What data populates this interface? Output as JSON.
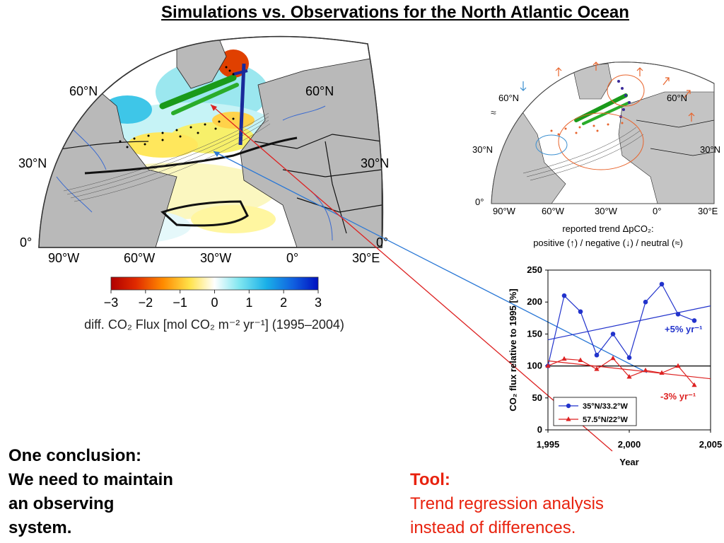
{
  "title": "Simulations vs. Observations for the North Atlantic Ocean",
  "main_map": {
    "lat_labels_left": [
      "60°N",
      "30°N",
      "0°"
    ],
    "lat_labels_right": [
      "60°N",
      "30°N",
      "0°"
    ],
    "lon_labels": [
      "90°W",
      "60°W",
      "30°W",
      "0°",
      "30°E"
    ],
    "colorbar": {
      "ticks": [
        "−3",
        "−2",
        "−1",
        "0",
        "1",
        "2",
        "3"
      ],
      "range": [
        -3,
        3
      ],
      "label": "diff. CO₂ Flux [mol CO₂ m⁻² yr⁻¹] (1995–2004)"
    }
  },
  "inset_map": {
    "lat_labels_left": [
      "60°N",
      "30°N",
      "0°"
    ],
    "lat_labels_right": [
      "60°N",
      "30°N"
    ],
    "lon_labels": [
      "90°W",
      "60°W",
      "30°W",
      "0°",
      "30°E"
    ],
    "caption_line1": "reported trend ΔpCO₂:",
    "caption_line2": "positive (↑) / negative (↓) / neutral (≈)",
    "colors": {
      "positive": "#e8642c",
      "negative": "#3a8fd0",
      "neutral": "#333333"
    }
  },
  "chart_data": {
    "type": "line",
    "xlabel": "Year",
    "ylabel": "CO₂ flux relative to 1995 [%]",
    "xlim": [
      1995,
      2005
    ],
    "ylim": [
      0,
      250
    ],
    "xticks": [
      "1,995",
      "2,000",
      "2,005"
    ],
    "yticks": [
      "0",
      "50",
      "100",
      "150",
      "200",
      "250"
    ],
    "reference_line": 100,
    "series": [
      {
        "name": "35°N/33.2°W",
        "color": "#2233cc",
        "marker": "circle",
        "x": [
          1995,
          1996,
          1997,
          1998,
          1999,
          2000,
          2001,
          2002,
          2003,
          2004
        ],
        "y": [
          100,
          210,
          185,
          117,
          150,
          113,
          200,
          228,
          181,
          171
        ],
        "trend": {
          "label": "+5% yr⁻¹",
          "y_start": 141,
          "y_end": 194
        }
      },
      {
        "name": "57.5°N/22°W",
        "color": "#dd2222",
        "marker": "triangle",
        "x": [
          1995,
          1996,
          1997,
          1998,
          1999,
          2000,
          2001,
          2002,
          2003,
          2004
        ],
        "y": [
          100,
          111,
          109,
          95,
          112,
          83,
          93,
          89,
          100,
          70
        ],
        "trend": {
          "label": "-3% yr⁻¹",
          "y_start": 108,
          "y_end": 80
        }
      }
    ]
  },
  "conclusion": {
    "lines": [
      "One conclusion:",
      "We need to maintain",
      "an observing",
      "system."
    ]
  },
  "tool": {
    "heading": "Tool:",
    "lines": [
      "Trend regression analysis",
      "instead of differences."
    ]
  }
}
